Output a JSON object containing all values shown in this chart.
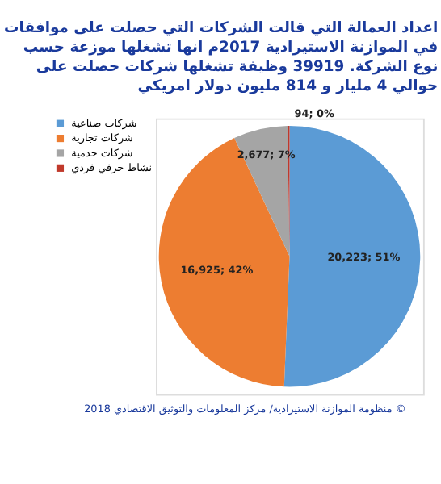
{
  "chart_data": {
    "type": "pie",
    "title": "اعداد العمالة التي قالت الشركات التي حصلت على موافقات\nفي الموازنة الاستيرادية 2017م انها تشغلها موزعة حسب\nنوع الشركة. 39919 وظيفة تشغلها شركات حصلت على\nحوالي 4 مليار و 814 مليون دولار امريكي",
    "categories": [
      "شركات صناعية",
      "شركات تجارية",
      "شركات خدمية",
      "نشاط حرفي فردي"
    ],
    "values": [
      20223,
      16925,
      2677,
      94
    ],
    "colors": [
      "#5b9bd5",
      "#ed7d31",
      "#a5a5a5",
      "#c0392b"
    ],
    "value_labels": [
      "20,223; 51%",
      "16,925; 42%",
      "2,677; 7%",
      "94; 0%"
    ],
    "legend": "left",
    "annotations": [
      "منظومة الموازنة الاستيرادية/ مركز المعلومات والتوثيق الاقتصادي 2018 ©"
    ]
  }
}
